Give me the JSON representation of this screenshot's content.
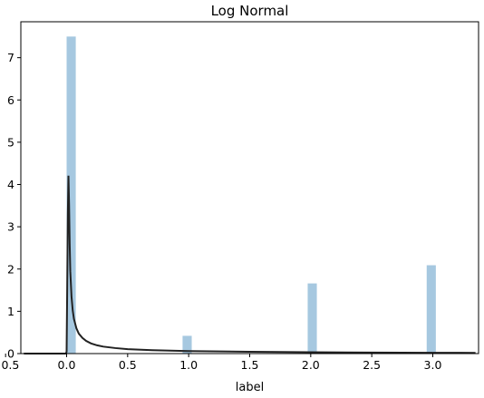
{
  "chart_data": {
    "type": "bar",
    "title": "Log Normal",
    "xlabel": "label",
    "ylabel": "",
    "xlim": [
      -0.375,
      3.375
    ],
    "ylim": [
      0,
      7.85
    ],
    "grid": false,
    "x_ticks": [
      -0.5,
      0.0,
      0.5,
      1.0,
      1.5,
      2.0,
      2.5,
      3.0,
      3.5
    ],
    "x_tick_labels": [
      "−0.5",
      "0.0",
      "0.5",
      "1.0",
      "1.5",
      "2.0",
      "2.5",
      "3.0",
      "3.5"
    ],
    "y_ticks": [
      0,
      1,
      2,
      3,
      4,
      5,
      6,
      7
    ],
    "y_tick_labels": [
      "0",
      "1",
      "2",
      "3",
      "4",
      "5",
      "6",
      "7"
    ],
    "histogram": {
      "color": "#a6c8e0",
      "bars": [
        {
          "x0": 0.0,
          "x1": 0.075,
          "height": 7.5
        },
        {
          "x0": 0.95,
          "x1": 1.025,
          "height": 0.42
        },
        {
          "x0": 1.975,
          "x1": 2.05,
          "height": 1.66
        },
        {
          "x0": 2.95,
          "x1": 3.025,
          "height": 2.09
        }
      ]
    },
    "fit_curve": {
      "color": "#222222",
      "points": [
        [
          -0.35,
          0.0
        ],
        [
          -0.2,
          0.0
        ],
        [
          -0.1,
          0.0
        ],
        [
          -0.02,
          0.0
        ],
        [
          -0.005,
          0.0
        ],
        [
          0.0,
          0.05
        ],
        [
          0.005,
          1.6
        ],
        [
          0.01,
          3.3
        ],
        [
          0.015,
          4.21
        ],
        [
          0.02,
          3.55
        ],
        [
          0.025,
          2.6
        ],
        [
          0.03,
          1.95
        ],
        [
          0.04,
          1.35
        ],
        [
          0.05,
          1.02
        ],
        [
          0.06,
          0.82
        ],
        [
          0.08,
          0.6
        ],
        [
          0.1,
          0.47
        ],
        [
          0.13,
          0.37
        ],
        [
          0.16,
          0.3
        ],
        [
          0.2,
          0.24
        ],
        [
          0.25,
          0.195
        ],
        [
          0.3,
          0.165
        ],
        [
          0.4,
          0.13
        ],
        [
          0.5,
          0.105
        ],
        [
          0.7,
          0.08
        ],
        [
          1.0,
          0.06
        ],
        [
          1.5,
          0.042
        ],
        [
          2.0,
          0.032
        ],
        [
          2.5,
          0.025
        ],
        [
          3.0,
          0.02
        ],
        [
          3.35,
          0.017
        ]
      ]
    }
  }
}
